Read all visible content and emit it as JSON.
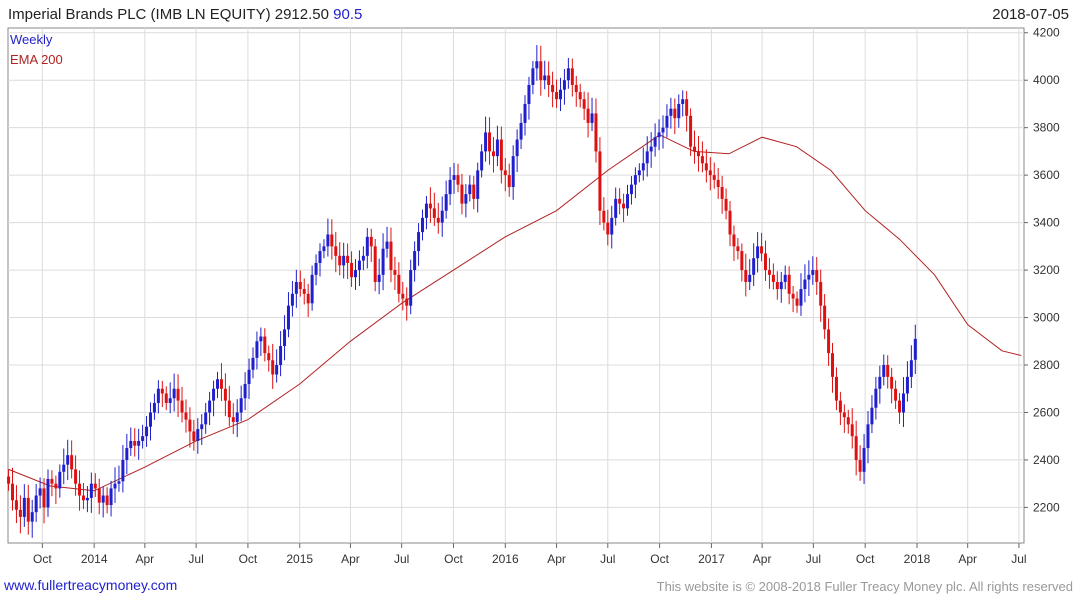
{
  "header": {
    "security": "Imperial Brands PLC (IMB LN EQUITY)",
    "price": "2912.50",
    "change": "90.5",
    "date": "2018-07-05"
  },
  "legend": {
    "period": "Weekly",
    "indicator": "EMA 200"
  },
  "footer": {
    "site": "www.fullertreacymoney.com",
    "copyright": "This website is © 2008-2018 Fuller Treacy Money plc. All rights reserved"
  },
  "colors": {
    "up": "#1f1fcc",
    "down": "#dd1111",
    "ema": "#b22222",
    "grid": "#dcdcdc",
    "change": "#1f1fcc"
  },
  "chart_data": {
    "type": "candlestick",
    "y_axis": {
      "range": [
        2050,
        4220
      ],
      "ticks": [
        2200,
        2400,
        2600,
        2800,
        3000,
        3200,
        3400,
        3600,
        3800,
        4000,
        4200
      ],
      "position": "right"
    },
    "x_axis": {
      "range": [
        "2013-08-01",
        "2018-07-10"
      ],
      "ticks": [
        {
          "date": "2013-10-01",
          "label": "Oct"
        },
        {
          "date": "2014-01-01",
          "label": "2014"
        },
        {
          "date": "2014-04-01",
          "label": "Apr"
        },
        {
          "date": "2014-07-01",
          "label": "Jul"
        },
        {
          "date": "2014-10-01",
          "label": "Oct"
        },
        {
          "date": "2015-01-01",
          "label": "2015"
        },
        {
          "date": "2015-04-01",
          "label": "Apr"
        },
        {
          "date": "2015-07-01",
          "label": "Jul"
        },
        {
          "date": "2015-10-01",
          "label": "Oct"
        },
        {
          "date": "2016-01-01",
          "label": "2016"
        },
        {
          "date": "2016-04-01",
          "label": "Apr"
        },
        {
          "date": "2016-07-01",
          "label": "Jul"
        },
        {
          "date": "2016-10-01",
          "label": "Oct"
        },
        {
          "date": "2017-01-01",
          "label": "2017"
        },
        {
          "date": "2017-04-01",
          "label": "Apr"
        },
        {
          "date": "2017-07-01",
          "label": "Jul"
        },
        {
          "date": "2017-10-01",
          "label": "Oct"
        },
        {
          "date": "2018-01-01",
          "label": "2018"
        },
        {
          "date": "2018-04-01",
          "label": "Apr"
        },
        {
          "date": "2018-07-01",
          "label": "Jul"
        }
      ]
    },
    "grid": true,
    "series": [
      {
        "name": "Weekly",
        "kind": "candles",
        "start": "2013-08-02",
        "interval_days": 7,
        "close": [
          2300,
          2230,
          2190,
          2160,
          2240,
          2140,
          2180,
          2250,
          2280,
          2200,
          2320,
          2300,
          2280,
          2350,
          2380,
          2420,
          2360,
          2300,
          2250,
          2230,
          2240,
          2300,
          2280,
          2220,
          2250,
          2210,
          2280,
          2300,
          2310,
          2400,
          2450,
          2480,
          2460,
          2480,
          2500,
          2540,
          2600,
          2640,
          2700,
          2680,
          2640,
          2660,
          2700,
          2650,
          2600,
          2570,
          2520,
          2480,
          2530,
          2550,
          2600,
          2650,
          2700,
          2740,
          2700,
          2650,
          2580,
          2560,
          2600,
          2660,
          2720,
          2780,
          2830,
          2900,
          2920,
          2850,
          2820,
          2760,
          2800,
          2880,
          2950,
          3050,
          3100,
          3150,
          3120,
          3100,
          3060,
          3180,
          3230,
          3280,
          3300,
          3350,
          3300,
          3260,
          3220,
          3260,
          3230,
          3170,
          3200,
          3240,
          3260,
          3340,
          3300,
          3150,
          3180,
          3290,
          3320,
          3200,
          3180,
          3100,
          3080,
          3050,
          3200,
          3280,
          3360,
          3420,
          3480,
          3460,
          3420,
          3400,
          3450,
          3520,
          3580,
          3600,
          3560,
          3480,
          3520,
          3560,
          3500,
          3620,
          3700,
          3780,
          3700,
          3680,
          3750,
          3620,
          3600,
          3550,
          3680,
          3750,
          3820,
          3900,
          3980,
          4050,
          4080,
          4000,
          4020,
          3980,
          3950,
          3920,
          3960,
          4000,
          4050,
          3980,
          3950,
          3920,
          3880,
          3820,
          3860,
          3700,
          3450,
          3400,
          3350,
          3420,
          3500,
          3480,
          3460,
          3520,
          3560,
          3600,
          3620,
          3650,
          3700,
          3720,
          3760,
          3780,
          3800,
          3850,
          3880,
          3840,
          3900,
          3920,
          3850,
          3720,
          3700,
          3680,
          3650,
          3620,
          3600,
          3580,
          3550,
          3500,
          3450,
          3350,
          3300,
          3280,
          3200,
          3150,
          3180,
          3250,
          3300,
          3270,
          3200,
          3180,
          3150,
          3120,
          3150,
          3180,
          3100,
          3080,
          3050,
          3120,
          3160,
          3180,
          3200,
          3150,
          3050,
          2950,
          2850,
          2750,
          2650,
          2600,
          2580,
          2550,
          2500,
          2400,
          2350,
          2450,
          2550,
          2620,
          2700,
          2750,
          2800,
          2750,
          2700,
          2650,
          2600,
          2680,
          2750,
          2820,
          2910
        ],
        "open": [
          2330,
          2300,
          2230,
          2190,
          2160,
          2240,
          2140,
          2180,
          2250,
          2280,
          2200,
          2320,
          2300,
          2280,
          2350,
          2380,
          2420,
          2360,
          2300,
          2250,
          2230,
          2240,
          2300,
          2280,
          2220,
          2250,
          2210,
          2280,
          2300,
          2310,
          2400,
          2450,
          2480,
          2460,
          2480,
          2500,
          2540,
          2600,
          2640,
          2700,
          2680,
          2640,
          2660,
          2700,
          2650,
          2600,
          2570,
          2520,
          2480,
          2530,
          2550,
          2600,
          2650,
          2700,
          2740,
          2700,
          2650,
          2580,
          2560,
          2600,
          2660,
          2720,
          2780,
          2830,
          2900,
          2920,
          2850,
          2820,
          2760,
          2800,
          2880,
          2950,
          3050,
          3100,
          3150,
          3120,
          3100,
          3060,
          3180,
          3230,
          3280,
          3300,
          3350,
          3300,
          3260,
          3220,
          3260,
          3230,
          3170,
          3200,
          3240,
          3260,
          3340,
          3300,
          3150,
          3180,
          3290,
          3320,
          3200,
          3180,
          3100,
          3080,
          3050,
          3200,
          3280,
          3360,
          3420,
          3480,
          3460,
          3420,
          3400,
          3450,
          3520,
          3580,
          3600,
          3560,
          3480,
          3520,
          3560,
          3500,
          3620,
          3700,
          3780,
          3700,
          3680,
          3750,
          3620,
          3600,
          3550,
          3680,
          3750,
          3820,
          3900,
          3980,
          4050,
          4080,
          4000,
          4020,
          3980,
          3950,
          3920,
          3960,
          4000,
          4050,
          3980,
          3950,
          3920,
          3880,
          3820,
          3860,
          3700,
          3450,
          3400,
          3350,
          3420,
          3500,
          3480,
          3460,
          3520,
          3560,
          3600,
          3620,
          3650,
          3700,
          3720,
          3760,
          3780,
          3800,
          3850,
          3880,
          3840,
          3900,
          3920,
          3850,
          3720,
          3700,
          3680,
          3650,
          3620,
          3600,
          3580,
          3550,
          3500,
          3450,
          3350,
          3300,
          3280,
          3200,
          3150,
          3180,
          3250,
          3300,
          3270,
          3200,
          3180,
          3150,
          3120,
          3150,
          3180,
          3100,
          3080,
          3050,
          3120,
          3160,
          3180,
          3200,
          3150,
          3050,
          2950,
          2850,
          2750,
          2650,
          2600,
          2580,
          2550,
          2500,
          2400,
          2350,
          2450,
          2550,
          2620,
          2700,
          2750,
          2800,
          2750,
          2700,
          2650,
          2600,
          2680,
          2750,
          2822
        ]
      },
      {
        "name": "EMA 200",
        "kind": "line",
        "points": [
          {
            "date": "2013-08-02",
            "value": 2360
          },
          {
            "date": "2013-10-15",
            "value": 2290
          },
          {
            "date": "2014-01-01",
            "value": 2270
          },
          {
            "date": "2014-04-01",
            "value": 2370
          },
          {
            "date": "2014-07-01",
            "value": 2480
          },
          {
            "date": "2014-10-01",
            "value": 2570
          },
          {
            "date": "2015-01-01",
            "value": 2720
          },
          {
            "date": "2015-04-01",
            "value": 2900
          },
          {
            "date": "2015-07-01",
            "value": 3060
          },
          {
            "date": "2015-10-01",
            "value": 3200
          },
          {
            "date": "2016-01-01",
            "value": 3340
          },
          {
            "date": "2016-04-01",
            "value": 3450
          },
          {
            "date": "2016-07-01",
            "value": 3620
          },
          {
            "date": "2016-10-01",
            "value": 3770
          },
          {
            "date": "2016-12-01",
            "value": 3700
          },
          {
            "date": "2017-02-01",
            "value": 3690
          },
          {
            "date": "2017-04-01",
            "value": 3760
          },
          {
            "date": "2017-06-01",
            "value": 3720
          },
          {
            "date": "2017-08-01",
            "value": 3620
          },
          {
            "date": "2017-10-01",
            "value": 3450
          },
          {
            "date": "2017-12-01",
            "value": 3330
          },
          {
            "date": "2018-02-01",
            "value": 3180
          },
          {
            "date": "2018-04-01",
            "value": 2970
          },
          {
            "date": "2018-06-01",
            "value": 2860
          },
          {
            "date": "2018-07-05",
            "value": 2840
          }
        ]
      }
    ]
  }
}
